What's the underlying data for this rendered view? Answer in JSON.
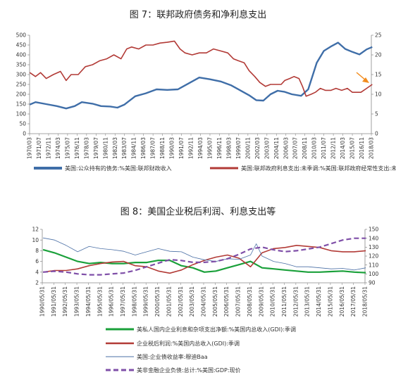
{
  "figures": [
    {
      "title": "图  7：联邦政府债务和净利息支出"
    },
    {
      "title": "图  8：美国企业税后利润、利息支出等"
    }
  ],
  "chart_data": [
    {
      "type": "line",
      "title": "图  7：联邦政府债务和净利息支出",
      "x_ticks": [
        "1970/03",
        "1971/07",
        "1972/11",
        "1974/03",
        "1975/07",
        "1976/11",
        "1978/03",
        "1979/07",
        "1980/11",
        "1982/03",
        "1983/07",
        "1984/11",
        "1986/03",
        "1987/07",
        "1988/11",
        "1990/03",
        "1991/07",
        "1992/11",
        "1994/03",
        "1995/07",
        "1996/11",
        "1998/03",
        "1999/07",
        "2000/11",
        "2002/03",
        "2003/07",
        "2004/11",
        "2006/03",
        "2007/07",
        "2008/11",
        "2010/03",
        "2011/07",
        "2012/11",
        "2014/03",
        "2015/07",
        "2016/11",
        "2018/03"
      ],
      "y_left": {
        "ticks": [
          0,
          50,
          100,
          150,
          200,
          250,
          300,
          350,
          400,
          450,
          500
        ],
        "range": [
          0,
          500
        ]
      },
      "y_right": {
        "ticks": [
          0,
          5,
          10,
          15,
          20,
          25
        ],
        "range": [
          0,
          25
        ]
      },
      "colors": {
        "blue": "#3f6ea8",
        "red": "#b23a36",
        "arrow": "#f28c1e"
      },
      "series": [
        {
          "name": "美国:公众持有的债务:%美国:联邦财政收入",
          "axis": "left",
          "x": [
            1970.2,
            1971.0,
            1972.5,
            1974.0,
            1975.3,
            1976.5,
            1977.5,
            1979.0,
            1980.2,
            1981.5,
            1982.5,
            1983.5,
            1985.0,
            1986.5,
            1988.0,
            1989.5,
            1991.0,
            1992.5,
            1994.0,
            1995.5,
            1997.0,
            1998.5,
            2000.0,
            2001.0,
            2002.0,
            2003.0,
            2004.0,
            2005.0,
            2006.0,
            2007.0,
            2008.3,
            2009.3,
            2010.5,
            2011.5,
            2012.6,
            2013.5,
            2014.5,
            2015.5,
            2016.5,
            2017.5,
            2018.3
          ],
          "values": [
            148,
            160,
            150,
            140,
            128,
            140,
            160,
            152,
            140,
            138,
            132,
            148,
            190,
            205,
            225,
            222,
            225,
            255,
            285,
            276,
            265,
            245,
            215,
            195,
            170,
            168,
            200,
            218,
            212,
            200,
            192,
            225,
            360,
            420,
            445,
            462,
            430,
            415,
            402,
            428,
            440
          ]
        },
        {
          "name": "美国:联邦政府利息支出:未季调:%美国:联邦政府经常性支出:未季调",
          "axis": "right",
          "x": [
            1970.2,
            1971.0,
            1971.7,
            1972.5,
            1973.5,
            1974.5,
            1975.3,
            1976.0,
            1977.0,
            1978.0,
            1979.0,
            1980.0,
            1981.0,
            1982.0,
            1983.0,
            1983.8,
            1984.5,
            1985.5,
            1986.5,
            1987.5,
            1988.5,
            1989.5,
            1990.5,
            1991.3,
            1992.0,
            1993.0,
            1994.0,
            1995.0,
            1996.0,
            1997.0,
            1998.0,
            1998.8,
            1999.5,
            2000.3,
            2001.0,
            2001.8,
            2002.5,
            2003.3,
            2004.0,
            2004.8,
            2005.5,
            2006.0,
            2006.7,
            2007.3,
            2008.0,
            2008.5,
            2009.0,
            2009.7,
            2010.3,
            2011.0,
            2011.7,
            2012.5,
            2013.2,
            2014.0,
            2014.8,
            2015.5,
            2016.0,
            2016.7,
            2017.5,
            2018.3
          ],
          "values": [
            15.5,
            14.5,
            15.5,
            14.0,
            15.0,
            15.8,
            13.5,
            15.0,
            15.0,
            17.0,
            17.5,
            18.5,
            19.0,
            20.0,
            19.0,
            21.5,
            22.0,
            21.5,
            22.5,
            22.5,
            23.0,
            23.2,
            23.5,
            21.5,
            20.5,
            20.0,
            20.5,
            20.5,
            21.5,
            21.0,
            20.5,
            19.0,
            18.5,
            18.0,
            16.0,
            14.5,
            13.0,
            12.0,
            12.5,
            12.5,
            12.5,
            13.5,
            14.0,
            14.5,
            14.0,
            12.0,
            9.5,
            10.0,
            10.5,
            11.5,
            11.0,
            11.0,
            11.5,
            11.0,
            11.5,
            10.5,
            10.5,
            10.5,
            11.5,
            12.5
          ]
        }
      ],
      "legend": [
        "美国:公众持有的债务:%美国:联邦财政收入",
        "美国:联邦政府利息支出:未季调:%美国:联邦政府经常性支出:未季调"
      ],
      "legend_position": "bottom",
      "annotation": "orange arrow pointing to 2018 end of red series"
    },
    {
      "type": "line",
      "title": "图  8：美国企业税后利润、利息支出等",
      "x_ticks": [
        "1990/05/31",
        "1991/05/31",
        "1992/05/31",
        "1993/05/31",
        "1994/05/31",
        "1995/05/31",
        "1996/05/31",
        "1997/05/31",
        "1998/05/31",
        "1999/05/31",
        "2000/05/31",
        "2001/05/31",
        "2002/05/31",
        "2003/05/31",
        "2004/05/31",
        "2005/05/31",
        "2006/05/31",
        "2007/05/31",
        "2008/05/31",
        "2009/05/31",
        "2010/05/31",
        "2011/05/31",
        "2012/05/31",
        "2013/05/31",
        "2014/05/31",
        "2015/05/31",
        "2016/05/31",
        "2017/05/31",
        "2018/05/31"
      ],
      "y_left": {
        "ticks": [
          2,
          4,
          6,
          8,
          10,
          12
        ],
        "range": [
          2,
          12
        ]
      },
      "y_right": {
        "ticks": [
          90,
          100,
          110,
          120,
          130,
          140,
          150
        ],
        "range": [
          90,
          150
        ]
      },
      "colors": {
        "green": "#1aa03a",
        "red": "#b23a36",
        "blue": "#4a6fa5",
        "purple": "#7f4fa8"
      },
      "series": [
        {
          "name": "美私人国内企业利息和杂项支出净额:%美国内总收入(GDI):季调",
          "axis": "left",
          "style": "solid-thick",
          "x": [
            1990.4,
            1991.4,
            1992.4,
            1993.4,
            1994.4,
            1995.4,
            1996.4,
            1997.4,
            1998.4,
            1999.4,
            2000.4,
            2001.4,
            2002.4,
            2003.4,
            2004.4,
            2005.4,
            2006.4,
            2007.4,
            2008.4,
            2009.4,
            2010.4,
            2011.4,
            2012.4,
            2013.4,
            2014.4,
            2015.4,
            2016.4,
            2017.4,
            2018.4
          ],
          "values": [
            8.2,
            7.6,
            6.8,
            6.0,
            5.6,
            5.8,
            5.6,
            5.6,
            5.8,
            5.8,
            6.2,
            6.2,
            5.2,
            4.8,
            4.0,
            4.2,
            4.8,
            5.4,
            6.0,
            4.8,
            4.6,
            4.4,
            4.2,
            4.0,
            4.0,
            4.1,
            4.2,
            4.0,
            3.9
          ]
        },
        {
          "name": "企业税后利润:%美国内总收入(GDI):季调",
          "axis": "left",
          "style": "solid",
          "x": [
            1990.4,
            1991.4,
            1992.4,
            1993.4,
            1994.4,
            1995.4,
            1996.4,
            1997.4,
            1998.4,
            1999.4,
            2000.4,
            2001.4,
            2002.4,
            2003.4,
            2004.4,
            2005.4,
            2006.4,
            2007.4,
            2008.4,
            2009.4,
            2010.4,
            2011.4,
            2012.4,
            2013.4,
            2014.4,
            2015.4,
            2016.4,
            2017.4,
            2018.4
          ],
          "values": [
            4.0,
            4.3,
            4.3,
            4.6,
            5.2,
            5.6,
            5.9,
            6.0,
            5.2,
            5.0,
            4.2,
            3.8,
            4.4,
            5.4,
            6.2,
            6.8,
            7.2,
            6.6,
            5.0,
            7.6,
            8.4,
            8.6,
            9.0,
            8.8,
            8.6,
            8.0,
            7.8,
            7.8,
            8.0
          ]
        },
        {
          "name": "美国:企业债收益率:穆迪Baa",
          "axis": "left",
          "style": "thin",
          "x": [
            1990.4,
            1991.4,
            1992.4,
            1993.4,
            1994.4,
            1995.4,
            1996.4,
            1997.4,
            1998.4,
            1999.4,
            2000.4,
            2001.4,
            2002.4,
            2003.4,
            2004.4,
            2005.4,
            2006.4,
            2007.4,
            2008.4,
            2008.9,
            2009.4,
            2010.4,
            2011.4,
            2012.4,
            2013.4,
            2014.4,
            2015.4,
            2016.4,
            2017.4,
            2018.4
          ],
          "values": [
            10.4,
            10.0,
            9.0,
            7.8,
            8.8,
            8.4,
            8.2,
            7.9,
            7.2,
            7.8,
            8.4,
            7.9,
            7.8,
            6.8,
            6.3,
            6.0,
            6.5,
            6.4,
            7.2,
            9.3,
            7.0,
            6.0,
            5.6,
            5.0,
            5.0,
            4.8,
            4.6,
            4.7,
            4.4,
            4.8
          ]
        },
        {
          "name": "美非金融企业负债:总计:%美国:GDP:现价",
          "axis": "right",
          "style": "dashed",
          "x": [
            1990.4,
            1991.4,
            1992.4,
            1993.4,
            1994.4,
            1995.4,
            1996.4,
            1997.4,
            1998.4,
            1999.4,
            2000.4,
            2001.4,
            2002.4,
            2003.4,
            2004.4,
            2005.4,
            2006.4,
            2007.4,
            2008.4,
            2009.4,
            2010.4,
            2011.4,
            2012.4,
            2013.4,
            2014.4,
            2015.4,
            2016.4,
            2017.4,
            2018.4
          ],
          "values": [
            102,
            103,
            102,
            100,
            99,
            99,
            100,
            101,
            104,
            108,
            112,
            116,
            115,
            113,
            113,
            114,
            117,
            122,
            128,
            130,
            127,
            125,
            126,
            128,
            130,
            134,
            138,
            140,
            140
          ]
        }
      ],
      "legend": [
        "美私人国内企业利息和杂项支出净额:%美国内总收入(GDI):季调",
        "企业税后利润:%美国内总收入(GDI):季调",
        "美国:企业债收益率:穆迪Baa",
        "美非金融企业负债:总计:%美国:GDP:现价"
      ],
      "legend_position": "bottom"
    }
  ]
}
